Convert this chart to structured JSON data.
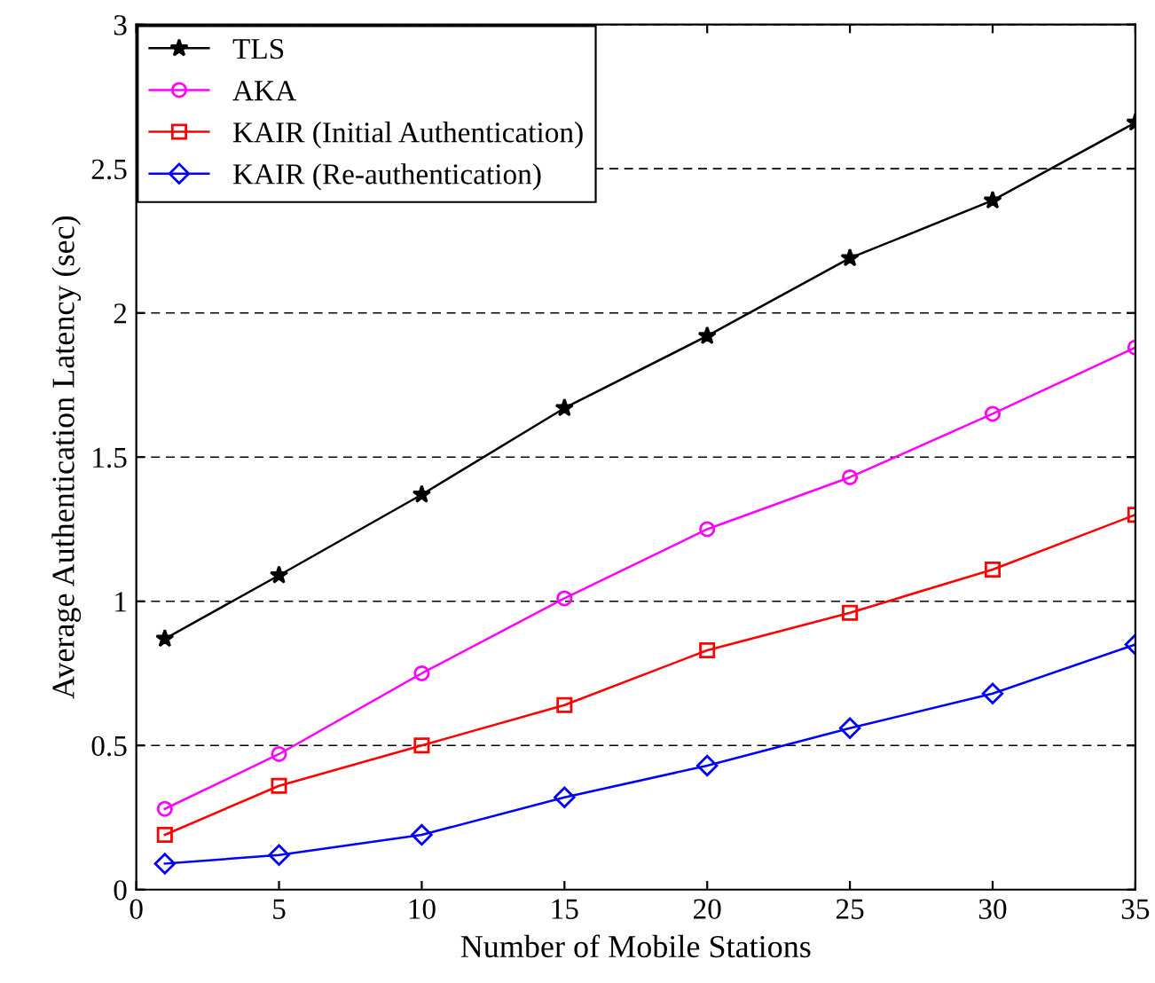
{
  "chart_data": {
    "type": "line",
    "xlabel": "Number of Mobile Stations",
    "ylabel": "Average Authentication Latency (sec)",
    "x": [
      1,
      5,
      10,
      15,
      20,
      25,
      30,
      35
    ],
    "series": [
      {
        "name": "TLS",
        "color": "#000000",
        "marker": "star",
        "values": [
          0.87,
          1.09,
          1.37,
          1.67,
          1.92,
          2.19,
          2.39,
          2.66
        ]
      },
      {
        "name": "AKA",
        "color": "#ff00ff",
        "marker": "circle",
        "values": [
          0.28,
          0.47,
          0.75,
          1.01,
          1.25,
          1.43,
          1.65,
          1.88
        ]
      },
      {
        "name": "KAIR (Initial Authentication)",
        "color": "#ff0000",
        "marker": "square",
        "values": [
          0.19,
          0.36,
          0.5,
          0.64,
          0.83,
          0.96,
          1.11,
          1.3
        ]
      },
      {
        "name": "KAIR (Re-authentication)",
        "color": "#0000ff",
        "marker": "diamond",
        "values": [
          0.09,
          0.12,
          0.19,
          0.32,
          0.43,
          0.56,
          0.68,
          0.85
        ]
      }
    ],
    "xlim": [
      0,
      35
    ],
    "xticks": [
      0,
      5,
      10,
      15,
      20,
      25,
      30,
      35
    ],
    "ylim": [
      0,
      3
    ],
    "yticks": [
      0,
      0.5,
      1,
      1.5,
      2,
      2.5,
      3
    ],
    "grid": "y",
    "legend": "top left",
    "line_style": "solid"
  }
}
